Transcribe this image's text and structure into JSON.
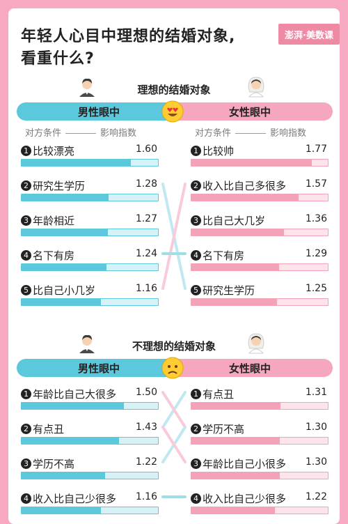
{
  "title_line1": "年轻人心目中理想的结婚对象,",
  "title_line2": "看重什么?",
  "logo_text": "澎湃·美数课",
  "colors": {
    "male": "#5bc8dc",
    "female": "#f3a2b8",
    "background": "#f7a9c1"
  },
  "column_header": {
    "left": "对方条件",
    "right": "影响指数"
  },
  "chart_data": [
    {
      "type": "bar",
      "title": "理想的结婚对象",
      "emoji": "heart-eyes-emoji",
      "xlim": [
        0,
        2
      ],
      "panels": [
        {
          "name": "男性眼中",
          "categories": [
            "比较漂亮",
            "研究生学历",
            "年龄相近",
            "名下有房",
            "比自己小几岁"
          ],
          "values": [
            1.6,
            1.28,
            1.27,
            1.24,
            1.16
          ]
        },
        {
          "name": "女性眼中",
          "categories": [
            "比较帅",
            "收入比自己多很多",
            "比自己大几岁",
            "名下有房",
            "研究生学历"
          ],
          "values": [
            1.77,
            1.57,
            1.36,
            1.29,
            1.25
          ]
        }
      ]
    },
    {
      "type": "bar",
      "title": "不理想的结婚对象",
      "emoji": "frowning-emoji",
      "xlim": [
        0,
        2
      ],
      "panels": [
        {
          "name": "男性眼中",
          "categories": [
            "年龄比自己大很多",
            "有点丑",
            "学历不高",
            "收入比自己少很多"
          ],
          "values": [
            1.5,
            1.43,
            1.22,
            1.16
          ]
        },
        {
          "name": "女性眼中",
          "categories": [
            "有点丑",
            "学历不高",
            "年龄比自己小很多",
            "收入比自己少很多"
          ],
          "values": [
            1.31,
            1.3,
            1.3,
            1.22
          ]
        }
      ]
    }
  ]
}
